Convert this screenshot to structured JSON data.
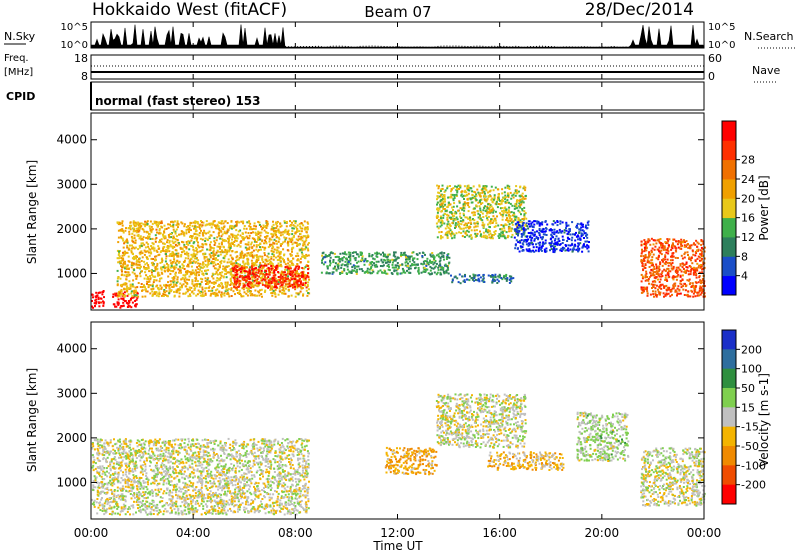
{
  "header": {
    "station": "Hokkaido West (fitACF)",
    "beam": "Beam 07",
    "date": "28/Dec/2014"
  },
  "top_panel": {
    "nsky_label": "N.Sky",
    "nsearch_label": "N.Search",
    "noise_ticks_left": [
      "10^5",
      "10^0"
    ],
    "noise_ticks_right": [
      "10^5",
      "10^0"
    ],
    "freq_label_1": "Freq.",
    "freq_label_2": "[MHz]",
    "freq_ticks": [
      "18",
      "8"
    ],
    "nave_label": "Nave",
    "nave_ticks": [
      "60",
      "0"
    ],
    "cpid_label": "CPID",
    "cpid_value": "normal (fast stereo) 153"
  },
  "time_axis": {
    "tick_labels": [
      "00:00",
      "04:00",
      "08:00",
      "12:00",
      "16:00",
      "20:00",
      "00:00"
    ],
    "label": "Time UT"
  },
  "range_axis": {
    "label": "Slant Range [km]",
    "tick_labels": [
      "1000",
      "2000",
      "3000",
      "4000"
    ]
  },
  "power_colorbar": {
    "label": "Power [dB]",
    "ticks": [
      "4",
      "8",
      "12",
      "16",
      "20",
      "24",
      "28"
    ],
    "colors": [
      "#0000ff",
      "#1a4ec8",
      "#2d7f5c",
      "#3fb04a",
      "#e8c81a",
      "#f0a000",
      "#f07000",
      "#ff3000",
      "#ff0000"
    ]
  },
  "velocity_colorbar": {
    "label": "Velocity [m s-1]",
    "ticks": [
      "200",
      "100",
      "50",
      "15",
      "-15",
      "-50",
      "-100",
      "-200"
    ],
    "colors": [
      "#1a2fc8",
      "#2e6e9e",
      "#2f8f3f",
      "#7fcf4f",
      "#c0c0c0",
      "#f4b400",
      "#f08a00",
      "#f04c00",
      "#ff0000"
    ]
  },
  "chart_data": {
    "type": "heatmap",
    "xlabel": "Time UT",
    "ylabel": "Slant Range [km]",
    "xlim_hours": [
      0,
      24
    ],
    "ylim_km": [
      180,
      4600
    ],
    "panels": [
      {
        "name": "Power [dB]",
        "clim": [
          3,
          30
        ],
        "features": [
          {
            "t": [
              0.0,
              0.5
            ],
            "r": [
              250,
              650
            ],
            "value": 30
          },
          {
            "t": [
              0.8,
              1.8
            ],
            "r": [
              250,
              600
            ],
            "value": 30
          },
          {
            "t": [
              1.0,
              8.5
            ],
            "r": [
              500,
              2200
            ],
            "value": 18
          },
          {
            "t": [
              5.5,
              8.5
            ],
            "r": [
              700,
              1200
            ],
            "value": 27
          },
          {
            "t": [
              9.0,
              14.0
            ],
            "r": [
              1000,
              1500
            ],
            "value": 12
          },
          {
            "t": [
              13.5,
              17.0
            ],
            "r": [
              1800,
              3000
            ],
            "value": 16
          },
          {
            "t": [
              14.0,
              16.5
            ],
            "r": [
              800,
              1000
            ],
            "value": 10
          },
          {
            "t": [
              16.5,
              19.5
            ],
            "r": [
              1500,
              2200
            ],
            "value": 6
          },
          {
            "t": [
              21.5,
              24.0
            ],
            "r": [
              500,
              1800
            ],
            "value": 24
          }
        ]
      },
      {
        "name": "Velocity [m s-1]",
        "clim": [
          -200,
          200
        ],
        "features": [
          {
            "t": [
              0.0,
              8.5
            ],
            "r": [
              300,
              2000
            ],
            "value": 0
          },
          {
            "t": [
              11.5,
              13.5
            ],
            "r": [
              1200,
              1800
            ],
            "value": -60
          },
          {
            "t": [
              13.5,
              17.0
            ],
            "r": [
              1800,
              3000
            ],
            "value": 0
          },
          {
            "t": [
              15.5,
              18.5
            ],
            "r": [
              1300,
              1700
            ],
            "value": -40
          },
          {
            "t": [
              19.0,
              21.0
            ],
            "r": [
              1500,
              2600
            ],
            "value": 20
          },
          {
            "t": [
              21.5,
              24.0
            ],
            "r": [
              500,
              1800
            ],
            "value": 0
          }
        ]
      }
    ]
  }
}
